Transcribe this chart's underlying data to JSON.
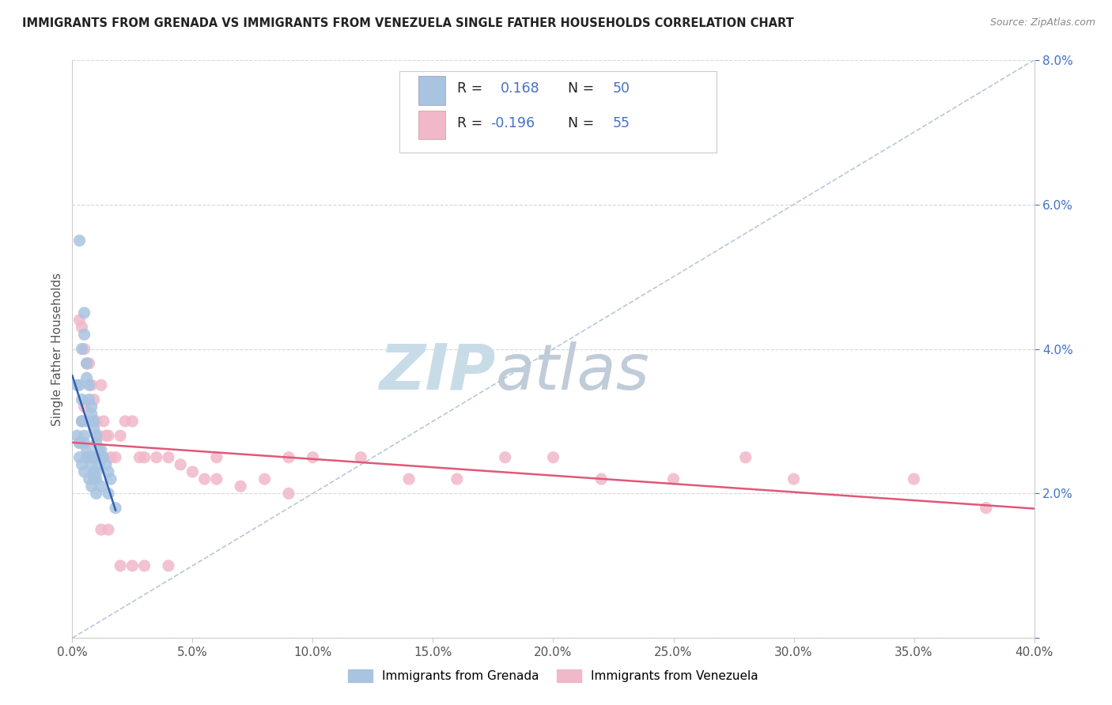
{
  "title": "IMMIGRANTS FROM GRENADA VS IMMIGRANTS FROM VENEZUELA SINGLE FATHER HOUSEHOLDS CORRELATION CHART",
  "source": "Source: ZipAtlas.com",
  "ylabel": "Single Father Households",
  "xlim": [
    0.0,
    0.4
  ],
  "ylim": [
    0.0,
    0.08
  ],
  "xticks": [
    0.0,
    0.05,
    0.1,
    0.15,
    0.2,
    0.25,
    0.3,
    0.35,
    0.4
  ],
  "yticks": [
    0.0,
    0.02,
    0.04,
    0.06,
    0.08
  ],
  "ytick_labels_right": [
    "",
    "2.0%",
    "4.0%",
    "6.0%",
    "8.0%"
  ],
  "xtick_labels": [
    "0.0%",
    "5.0%",
    "10.0%",
    "15.0%",
    "20.0%",
    "25.0%",
    "30.0%",
    "35.0%",
    "40.0%"
  ],
  "grenada_color": "#a8c4e0",
  "venezuela_color": "#f0b8c8",
  "grenada_trend_color": "#3060b0",
  "venezuela_trend_color": "#e05878",
  "diagonal_color": "#b8c8d8",
  "watermark_zip_color": "#c8dce8",
  "watermark_atlas_color": "#c0ccd8",
  "grenada_x": [
    0.003,
    0.005,
    0.005,
    0.006,
    0.006,
    0.007,
    0.007,
    0.008,
    0.008,
    0.009,
    0.009,
    0.01,
    0.01,
    0.011,
    0.012,
    0.012,
    0.013,
    0.014,
    0.015,
    0.016,
    0.003,
    0.004,
    0.004,
    0.005,
    0.005,
    0.006,
    0.007,
    0.008,
    0.009,
    0.01,
    0.002,
    0.002,
    0.003,
    0.003,
    0.004,
    0.004,
    0.005,
    0.006,
    0.007,
    0.008,
    0.009,
    0.01,
    0.011,
    0.012,
    0.015,
    0.018,
    0.004,
    0.006,
    0.008,
    0.01
  ],
  "grenada_y": [
    0.055,
    0.045,
    0.042,
    0.038,
    0.036,
    0.035,
    0.033,
    0.032,
    0.031,
    0.03,
    0.029,
    0.028,
    0.027,
    0.026,
    0.026,
    0.025,
    0.025,
    0.024,
    0.023,
    0.022,
    0.035,
    0.033,
    0.03,
    0.028,
    0.027,
    0.026,
    0.025,
    0.024,
    0.023,
    0.023,
    0.035,
    0.028,
    0.027,
    0.025,
    0.03,
    0.024,
    0.023,
    0.025,
    0.022,
    0.021,
    0.022,
    0.02,
    0.024,
    0.021,
    0.02,
    0.018,
    0.04,
    0.03,
    0.025,
    0.022
  ],
  "venezuela_x": [
    0.003,
    0.004,
    0.005,
    0.006,
    0.007,
    0.008,
    0.009,
    0.01,
    0.011,
    0.012,
    0.013,
    0.014,
    0.015,
    0.016,
    0.018,
    0.02,
    0.022,
    0.025,
    0.028,
    0.03,
    0.035,
    0.04,
    0.045,
    0.05,
    0.055,
    0.06,
    0.07,
    0.08,
    0.09,
    0.1,
    0.12,
    0.14,
    0.16,
    0.18,
    0.2,
    0.22,
    0.25,
    0.28,
    0.3,
    0.35,
    0.003,
    0.004,
    0.005,
    0.007,
    0.008,
    0.01,
    0.012,
    0.015,
    0.02,
    0.025,
    0.03,
    0.04,
    0.06,
    0.09,
    0.38
  ],
  "venezuela_y": [
    0.044,
    0.043,
    0.04,
    0.038,
    0.038,
    0.035,
    0.033,
    0.03,
    0.028,
    0.035,
    0.03,
    0.028,
    0.028,
    0.025,
    0.025,
    0.028,
    0.03,
    0.03,
    0.025,
    0.025,
    0.025,
    0.025,
    0.024,
    0.023,
    0.022,
    0.022,
    0.021,
    0.022,
    0.02,
    0.025,
    0.025,
    0.022,
    0.022,
    0.025,
    0.025,
    0.022,
    0.022,
    0.025,
    0.022,
    0.022,
    0.027,
    0.03,
    0.032,
    0.025,
    0.025,
    0.025,
    0.015,
    0.015,
    0.01,
    0.01,
    0.01,
    0.01,
    0.025,
    0.025,
    0.018
  ]
}
